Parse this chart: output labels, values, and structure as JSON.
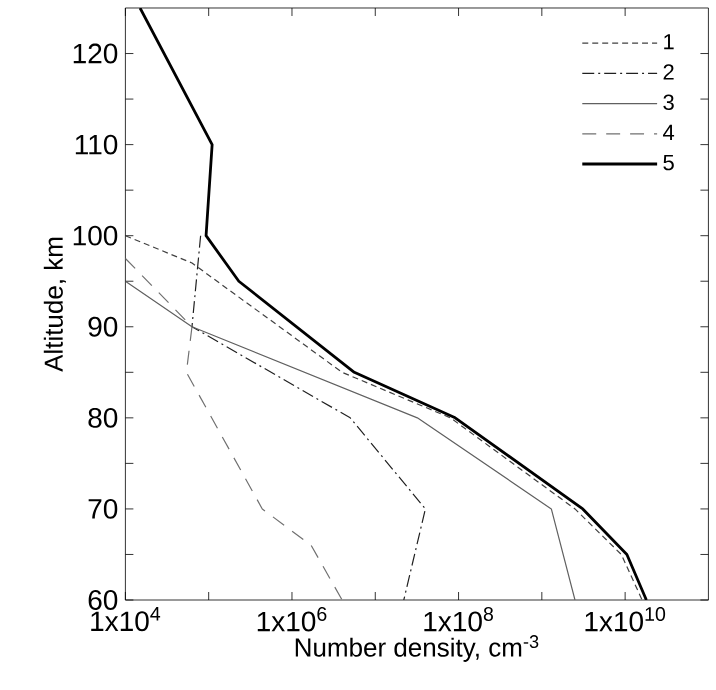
{
  "chart_data": {
    "type": "line",
    "xlabel": "Number density, cm$^{-3}$",
    "ylabel": "Altitude, km",
    "log": "x",
    "xlim": [
      10000,
      100000000000
    ],
    "ylim": [
      60,
      125
    ],
    "xticks": [
      {
        "value": 10000,
        "label": "1x10$^{4}$"
      },
      {
        "value": 100000,
        "label": null
      },
      {
        "value": 1000000,
        "label": "1x10$^{6}$"
      },
      {
        "value": 10000000,
        "label": null
      },
      {
        "value": 100000000,
        "label": "1x10$^{8}$"
      },
      {
        "value": 1000000000,
        "label": null
      },
      {
        "value": 10000000000,
        "label": "1x10$^{10}$"
      }
    ],
    "yticks": [
      60,
      {
        "value": 65,
        "label": null
      },
      70,
      {
        "value": 75,
        "label": null
      },
      80,
      {
        "value": 85,
        "label": null
      },
      90,
      {
        "value": 95,
        "label": null
      },
      100,
      {
        "value": 105,
        "label": null
      },
      110,
      {
        "value": 115,
        "label": null
      },
      120
    ],
    "legend": "top right",
    "series": [
      {
        "name": "1",
        "color": "#404040",
        "line_style": "dashed",
        "x": [
          10000,
          63000,
          4000000,
          80000000,
          2500000000,
          9000000000,
          16000000000
        ],
        "values": [
          100,
          97,
          85,
          80,
          70,
          65,
          60
        ]
      },
      {
        "name": "2",
        "color": "#202020",
        "line_style": "dashdot",
        "x": [
          80000,
          63000,
          5000000,
          40000000,
          22000000
        ],
        "values": [
          100,
          90,
          80,
          70,
          60
        ]
      },
      {
        "name": "3",
        "color": "#606060",
        "line_style": "solid",
        "x": [
          10000,
          63000,
          32000000,
          1300000000,
          2500000000
        ],
        "values": [
          95,
          90,
          80,
          70,
          60
        ]
      },
      {
        "name": "4",
        "color": "#707070",
        "line_style": "long dashed",
        "x": [
          10000,
          63000,
          54000,
          440000,
          1700000,
          4000000
        ],
        "values": [
          97.5,
          90,
          85,
          70,
          66,
          60
        ]
      },
      {
        "name": "5",
        "color": "#000000",
        "line_style": "solid",
        "x": [
          15000,
          110000,
          93000,
          230000,
          5600000,
          91000000,
          3100000000,
          10500000000,
          18000000000
        ],
        "values": [
          125,
          110,
          100,
          95,
          85,
          80,
          70,
          65,
          60
        ]
      }
    ]
  }
}
